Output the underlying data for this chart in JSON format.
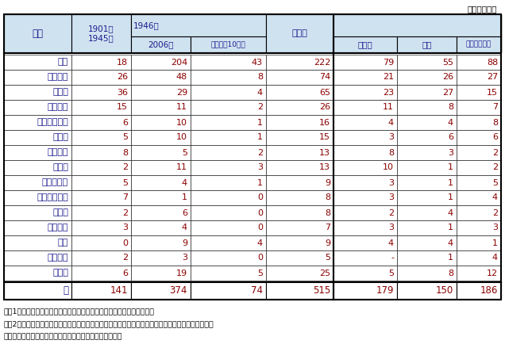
{
  "unit_label": "（単位：人）",
  "countries": [
    "米国",
    "イギリス",
    "ドイツ",
    "フランス",
    "スウェーデン",
    "スイス",
    "オランダ",
    "旧ソ連",
    "デンマーク",
    "オーストリア",
    "カナダ",
    "イタリア",
    "日本",
    "ベルギー",
    "その他"
  ],
  "data": [
    [
      18,
      204,
      43,
      222,
      79,
      55,
      88
    ],
    [
      26,
      48,
      8,
      74,
      21,
      26,
      27
    ],
    [
      36,
      29,
      4,
      65,
      23,
      27,
      15
    ],
    [
      15,
      11,
      2,
      26,
      11,
      8,
      7
    ],
    [
      6,
      10,
      1,
      16,
      4,
      4,
      8
    ],
    [
      5,
      10,
      1,
      15,
      3,
      6,
      6
    ],
    [
      8,
      5,
      2,
      13,
      8,
      3,
      2
    ],
    [
      2,
      11,
      3,
      13,
      10,
      1,
      2
    ],
    [
      5,
      4,
      1,
      9,
      3,
      1,
      5
    ],
    [
      7,
      1,
      0,
      8,
      3,
      1,
      4
    ],
    [
      2,
      6,
      0,
      8,
      2,
      4,
      2
    ],
    [
      3,
      4,
      0,
      7,
      3,
      1,
      3
    ],
    [
      0,
      9,
      4,
      9,
      4,
      4,
      1
    ],
    [
      2,
      3,
      0,
      5,
      "-",
      1,
      4
    ],
    [
      6,
      19,
      5,
      25,
      5,
      8,
      12
    ]
  ],
  "total_row": [
    141,
    374,
    74,
    515,
    179,
    150,
    186
  ],
  "total_label": "計",
  "footnotes": [
    "注）1．自然科学分野の物理学、化学、医学・生理学の各賞のみとする。",
    "　　2．受賞者の国名は国籍でカウントしている。ただし、二重国籍者は出生国でカウントしている。",
    "資料：ノーベル財団公表資料等に基づき文部科学省で作成"
  ],
  "header_bg": "#cfe2f0",
  "text_color_header": "#1a1a8c",
  "text_color_data": "#8b0000",
  "text_color_black": "#000000",
  "border_color": "#000000",
  "bg_color": "#ffffff",
  "fig_width": 6.36,
  "fig_height": 4.34
}
